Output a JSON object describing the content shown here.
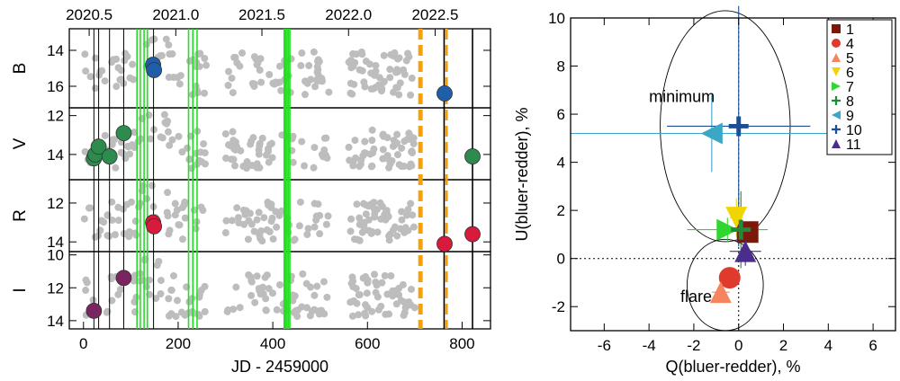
{
  "chart_data": [
    {
      "type": "scatter",
      "panel": "light-curves",
      "xlabel": "JD - 2459000",
      "xlim": [
        -30,
        860
      ],
      "x_ticks": [
        0,
        200,
        400,
        600,
        800
      ],
      "top_axis_labels": [
        "2020.5",
        "2021.0",
        "2021.5",
        "2022.0",
        "2022.5"
      ],
      "top_axis_positions": [
        12,
        195,
        377,
        560,
        743
      ],
      "vertical_lines": {
        "black": [
          22,
          32,
          55,
          85,
          148,
          762,
          822
        ],
        "green": [
          113,
          120,
          128,
          135,
          222,
          231,
          240,
          424,
          427,
          430,
          433,
          436
        ],
        "orange_dashed": [
          712,
          767
        ]
      },
      "bands": [
        {
          "name": "B",
          "ylim": [
            17.2,
            12.8
          ],
          "ticks": [
            14,
            16
          ],
          "color": "#1f5ea8",
          "highlight": [
            [
              147,
              14.8
            ],
            [
              149,
              15.1
            ],
            [
              763,
              16.4
            ]
          ]
        },
        {
          "name": "V",
          "ylim": [
            15.3,
            11.6
          ],
          "ticks": [
            12,
            14
          ],
          "color": "#2e8b4e",
          "highlight": [
            [
              22,
              14.2
            ],
            [
              25,
              14.0
            ],
            [
              32,
              13.6
            ],
            [
              55,
              14.1
            ],
            [
              85,
              12.9
            ],
            [
              822,
              14.1
            ]
          ]
        },
        {
          "name": "R",
          "ylim": [
            14.5,
            10.8
          ],
          "ticks": [
            12,
            14
          ],
          "color": "#d81b3c",
          "highlight": [
            [
              147,
              13.0
            ],
            [
              149,
              13.2
            ],
            [
              763,
              14.1
            ],
            [
              822,
              13.6
            ]
          ]
        },
        {
          "name": "I",
          "ylim": [
            14.5,
            9.8
          ],
          "ticks": [
            10,
            12,
            14
          ],
          "color": "#7a2460",
          "highlight": [
            [
              22,
              13.4
            ],
            [
              85,
              11.4
            ]
          ]
        }
      ],
      "background_color": "#bdbdbd"
    },
    {
      "type": "scatter",
      "panel": "Q-U plane",
      "xlabel": "Q(bluer-redder), %",
      "ylabel": "U(bluer-redder), %",
      "xlim": [
        -7.5,
        7
      ],
      "ylim": [
        -3,
        10
      ],
      "x_ticks": [
        -6,
        -4,
        -2,
        0,
        2,
        4,
        6
      ],
      "y_ticks": [
        -2,
        0,
        2,
        4,
        6,
        8,
        10
      ],
      "annotations": [
        "minimum",
        "flare"
      ],
      "circles": [
        {
          "label": "minimum",
          "cx": -0.6,
          "cy": 5.5,
          "r_x": 2.9,
          "r_y": 4.8
        },
        {
          "label": "flare",
          "cx": -0.6,
          "cy": -1.1,
          "r_x": 1.7,
          "r_y": 1.9
        }
      ],
      "series": [
        {
          "name": "1",
          "marker": "square",
          "color": "#7a1a0a",
          "q": 0.4,
          "u": 1.1,
          "eq": 0.4,
          "eu": 0.3
        },
        {
          "name": "4",
          "marker": "circle",
          "color": "#e03a2c",
          "q": -0.4,
          "u": -0.8,
          "eq": 0.3,
          "eu": 0.3
        },
        {
          "name": "5",
          "marker": "triangle-up",
          "color": "#f5855e",
          "q": -0.8,
          "u": -1.4,
          "eq": 0.4,
          "eu": 0.4
        },
        {
          "name": "6",
          "marker": "triangle-down",
          "color": "#f2d400",
          "q": -0.1,
          "u": 1.7,
          "eq": 0.3,
          "eu": 0.8
        },
        {
          "name": "7",
          "marker": "triangle-right",
          "color": "#2fd62f",
          "q": -0.5,
          "u": 1.2,
          "eq": 1.8,
          "eu": 0.5
        },
        {
          "name": "8",
          "marker": "plus",
          "color": "#1f8a3a",
          "q": 0.1,
          "u": 1.2,
          "eq": 0.6,
          "eu": 1.6
        },
        {
          "name": "9",
          "marker": "triangle-left",
          "color": "#3aa7c7",
          "q": -1.2,
          "u": 5.2,
          "eq": 6.3,
          "eu": 1.6
        },
        {
          "name": "10",
          "marker": "plus",
          "color": "#1c4f92",
          "q": 0.0,
          "u": 5.5,
          "eq": 3.2,
          "eu": 5.0
        },
        {
          "name": "11",
          "marker": "triangle-up",
          "color": "#4a2d8c",
          "q": 0.3,
          "u": 0.3,
          "eq": 0.7,
          "eu": 0.6
        }
      ]
    }
  ]
}
